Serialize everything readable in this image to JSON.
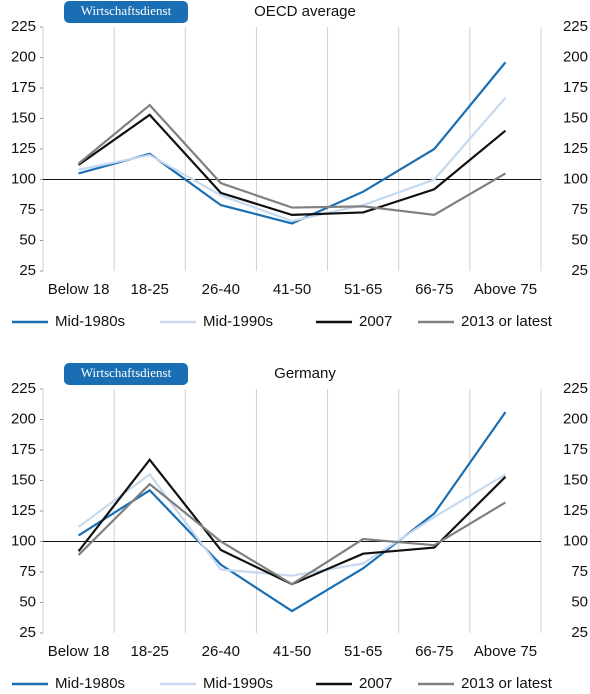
{
  "chart_data": [
    {
      "type": "line",
      "badge": "Wirtschaftsdienst",
      "title": "OECD average",
      "categories": [
        "Below 18",
        "18-25",
        "26-40",
        "41-50",
        "51-65",
        "66-75",
        "Above 75"
      ],
      "series": [
        {
          "name": "Mid-1980s",
          "color": "#1a6fb4",
          "values": [
            105,
            121,
            79,
            64,
            90,
            125,
            196
          ]
        },
        {
          "name": "Mid-1990s",
          "color": "#c6d9ef",
          "values": [
            108,
            120,
            87,
            66,
            79,
            100,
            167
          ]
        },
        {
          "name": "2007",
          "color": "#111111",
          "values": [
            112,
            153,
            89,
            71,
            73,
            92,
            140
          ]
        },
        {
          "name": "2013 or latest",
          "color": "#808080",
          "values": [
            113,
            161,
            97,
            77,
            78,
            71,
            105
          ]
        }
      ],
      "ylim": [
        25,
        225
      ],
      "yticks": [
        25,
        50,
        75,
        100,
        125,
        150,
        175,
        200,
        225
      ],
      "reference_line": 100
    },
    {
      "type": "line",
      "badge": "Wirtschaftsdienst",
      "title": "Germany",
      "categories": [
        "Below 18",
        "18-25",
        "26-40",
        "41-50",
        "51-65",
        "66-75",
        "Above 75"
      ],
      "series": [
        {
          "name": "Mid-1980s",
          "color": "#1a6fb4",
          "values": [
            105,
            142,
            81,
            43,
            78,
            123,
            206
          ]
        },
        {
          "name": "Mid-1990s",
          "color": "#c6d9ef",
          "values": [
            112,
            155,
            77,
            72,
            82,
            120,
            155
          ]
        },
        {
          "name": "2007",
          "color": "#111111",
          "values": [
            92,
            167,
            93,
            65,
            90,
            95,
            153
          ]
        },
        {
          "name": "2013 or latest",
          "color": "#808080",
          "values": [
            89,
            147,
            100,
            65,
            102,
            97,
            132
          ]
        }
      ],
      "ylim": [
        25,
        225
      ],
      "yticks": [
        25,
        50,
        75,
        100,
        125,
        150,
        175,
        200,
        225
      ],
      "reference_line": 100
    }
  ]
}
